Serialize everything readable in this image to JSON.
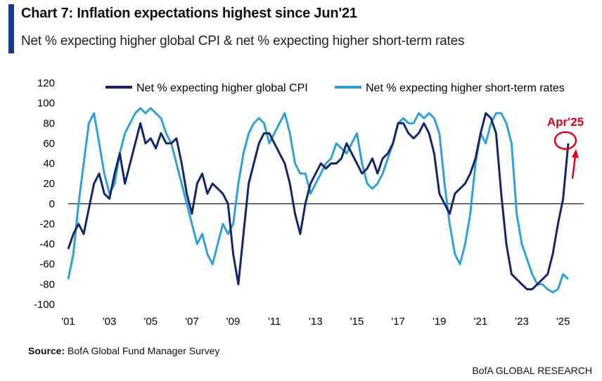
{
  "header": {
    "title": "Chart 7: Inflation expectations highest since Jun'21",
    "subtitle": "Net % expecting higher global CPI & net % expecting higher short-term rates"
  },
  "footer": {
    "source_label": "Source:",
    "source_text": "BofA Global Fund Manager Survey",
    "brand": "BofA GLOBAL RESEARCH"
  },
  "colors": {
    "cpi": "#14266b",
    "rates": "#2fa0dc",
    "accent": "#1a3a8f",
    "annotation": "#e3001b"
  },
  "chart_data": {
    "type": "line",
    "title": "Chart 7: Inflation expectations highest since Jun'21",
    "subtitle": "Net % expecting higher global CPI & net % expecting higher short-term rates",
    "x_tick_labels": [
      "'01",
      "'03",
      "'05",
      "'07",
      "'09",
      "'11",
      "'13",
      "'15",
      "'17",
      "'19",
      "'21",
      "'23",
      "'25"
    ],
    "x_tick_years": [
      2001,
      2003,
      2005,
      2007,
      2009,
      2011,
      2013,
      2015,
      2017,
      2019,
      2021,
      2023,
      2025
    ],
    "xlim": [
      2001.0,
      2026.0
    ],
    "ylim": [
      -100,
      120
    ],
    "y_ticks": [
      -100,
      -80,
      -60,
      -40,
      -20,
      0,
      20,
      40,
      60,
      80,
      100,
      120
    ],
    "grid": false,
    "zero_line": true,
    "legend_position": "top",
    "series": [
      {
        "name": "Net % expecting higher global CPI",
        "x": [
          2001.0,
          2001.25,
          2001.5,
          2001.75,
          2002.0,
          2002.25,
          2002.5,
          2002.75,
          2003.0,
          2003.25,
          2003.5,
          2003.75,
          2004.0,
          2004.25,
          2004.5,
          2004.75,
          2005.0,
          2005.25,
          2005.5,
          2005.75,
          2006.0,
          2006.25,
          2006.5,
          2006.75,
          2007.0,
          2007.25,
          2007.5,
          2007.75,
          2008.0,
          2008.25,
          2008.5,
          2008.75,
          2009.0,
          2009.25,
          2009.5,
          2009.75,
          2010.0,
          2010.25,
          2010.5,
          2010.75,
          2011.0,
          2011.25,
          2011.5,
          2011.75,
          2012.0,
          2012.25,
          2012.5,
          2012.75,
          2013.0,
          2013.25,
          2013.5,
          2013.75,
          2014.0,
          2014.25,
          2014.5,
          2014.75,
          2015.0,
          2015.25,
          2015.5,
          2015.75,
          2016.0,
          2016.25,
          2016.5,
          2016.75,
          2017.0,
          2017.25,
          2017.5,
          2017.75,
          2018.0,
          2018.25,
          2018.5,
          2018.75,
          2019.0,
          2019.25,
          2019.5,
          2019.75,
          2020.0,
          2020.25,
          2020.5,
          2020.75,
          2021.0,
          2021.25,
          2021.5,
          2021.75,
          2022.0,
          2022.25,
          2022.5,
          2022.75,
          2023.0,
          2023.25,
          2023.5,
          2023.75,
          2024.0,
          2024.25,
          2024.5,
          2024.75,
          2025.0,
          2025.25
        ],
        "values": [
          -45,
          -30,
          -20,
          -30,
          -5,
          20,
          30,
          10,
          5,
          30,
          50,
          20,
          40,
          60,
          80,
          60,
          65,
          55,
          70,
          60,
          60,
          65,
          40,
          10,
          -10,
          20,
          30,
          10,
          20,
          15,
          10,
          0,
          -50,
          -80,
          -30,
          20,
          40,
          60,
          70,
          70,
          60,
          50,
          40,
          20,
          -10,
          -30,
          0,
          20,
          30,
          40,
          35,
          40,
          40,
          45,
          60,
          50,
          40,
          30,
          35,
          45,
          30,
          45,
          50,
          60,
          80,
          80,
          70,
          65,
          70,
          80,
          70,
          50,
          10,
          0,
          -10,
          10,
          15,
          20,
          30,
          45,
          70,
          90,
          85,
          70,
          10,
          -40,
          -70,
          -75,
          -80,
          -85,
          -85,
          -80,
          -75,
          -70,
          -50,
          -20,
          5,
          60
        ]
      },
      {
        "name": "Net % expecting higher short-term rates",
        "x": [
          2001.0,
          2001.25,
          2001.5,
          2001.75,
          2002.0,
          2002.25,
          2002.5,
          2002.75,
          2003.0,
          2003.25,
          2003.5,
          2003.75,
          2004.0,
          2004.25,
          2004.5,
          2004.75,
          2005.0,
          2005.25,
          2005.5,
          2005.75,
          2006.0,
          2006.25,
          2006.5,
          2006.75,
          2007.0,
          2007.25,
          2007.5,
          2007.75,
          2008.0,
          2008.25,
          2008.5,
          2008.75,
          2009.0,
          2009.25,
          2009.5,
          2009.75,
          2010.0,
          2010.25,
          2010.5,
          2010.75,
          2011.0,
          2011.25,
          2011.5,
          2011.75,
          2012.0,
          2012.25,
          2012.5,
          2012.75,
          2013.0,
          2013.25,
          2013.5,
          2013.75,
          2014.0,
          2014.25,
          2014.5,
          2014.75,
          2015.0,
          2015.25,
          2015.5,
          2015.75,
          2016.0,
          2016.25,
          2016.5,
          2016.75,
          2017.0,
          2017.25,
          2017.5,
          2017.75,
          2018.0,
          2018.25,
          2018.5,
          2018.75,
          2019.0,
          2019.25,
          2019.5,
          2019.75,
          2020.0,
          2020.25,
          2020.5,
          2020.75,
          2021.0,
          2021.25,
          2021.5,
          2021.75,
          2022.0,
          2022.25,
          2022.5,
          2022.75,
          2023.0,
          2023.25,
          2023.5,
          2023.75,
          2024.0,
          2024.25,
          2024.5,
          2024.75,
          2025.0,
          2025.25
        ],
        "values": [
          -75,
          -50,
          0,
          40,
          80,
          90,
          60,
          30,
          10,
          20,
          50,
          70,
          80,
          90,
          95,
          90,
          95,
          90,
          85,
          70,
          60,
          40,
          20,
          0,
          -20,
          -40,
          -30,
          -50,
          -60,
          -40,
          -20,
          -30,
          -20,
          20,
          50,
          70,
          80,
          85,
          80,
          60,
          70,
          80,
          90,
          70,
          40,
          30,
          30,
          10,
          20,
          30,
          40,
          45,
          60,
          55,
          50,
          60,
          70,
          40,
          20,
          15,
          20,
          30,
          45,
          60,
          80,
          85,
          80,
          80,
          90,
          85,
          90,
          85,
          70,
          20,
          -20,
          -50,
          -60,
          -40,
          -10,
          40,
          70,
          60,
          80,
          90,
          90,
          80,
          60,
          -10,
          -40,
          -55,
          -70,
          -80,
          -80,
          -85,
          -88,
          -85,
          -70,
          -75
        ]
      }
    ],
    "annotations": [
      {
        "text": "Apr'25",
        "x": 2025.25,
        "y": 60
      }
    ]
  }
}
